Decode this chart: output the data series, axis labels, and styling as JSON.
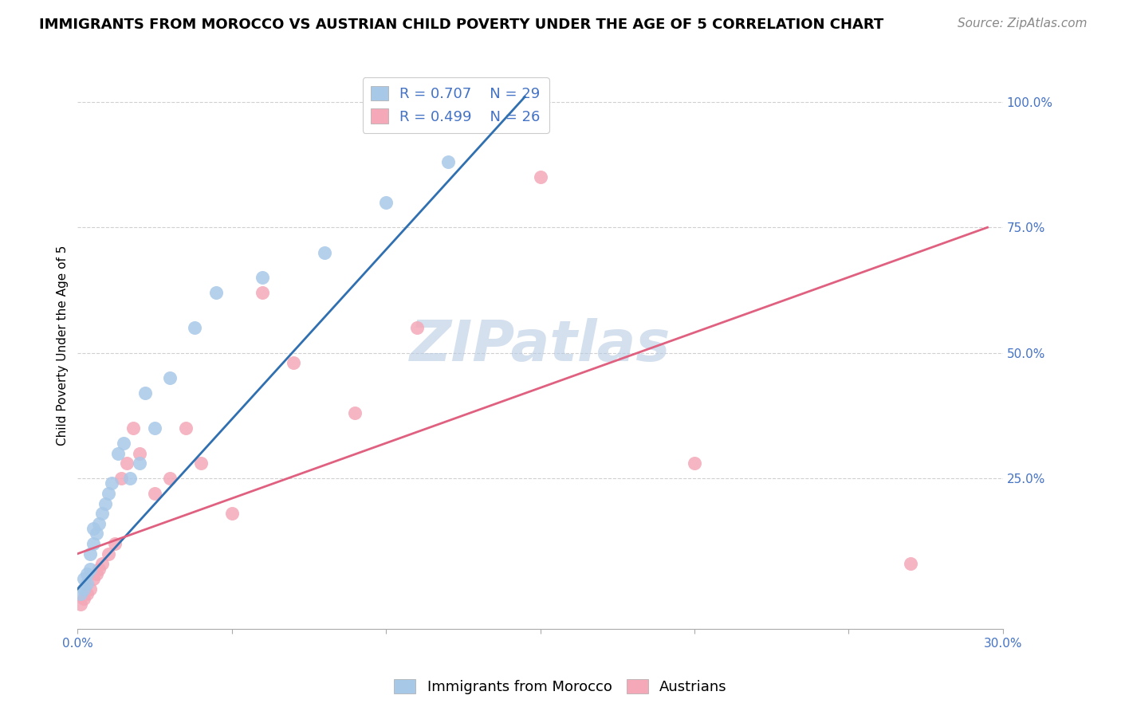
{
  "title": "IMMIGRANTS FROM MOROCCO VS AUSTRIAN CHILD POVERTY UNDER THE AGE OF 5 CORRELATION CHART",
  "source": "Source: ZipAtlas.com",
  "ylabel": "Child Poverty Under the Age of 5",
  "legend_series": [
    {
      "label": "Immigrants from Morocco",
      "R": "0.707",
      "N": "29",
      "color": "#a8c8e8"
    },
    {
      "label": "Austrians",
      "R": "0.499",
      "N": "26",
      "color": "#f4a8b8"
    }
  ],
  "xlim": [
    0.0,
    0.3
  ],
  "ylim": [
    -0.05,
    1.08
  ],
  "y_ticks_right": [
    0.25,
    0.5,
    0.75,
    1.0
  ],
  "y_tick_labels_right": [
    "25.0%",
    "50.0%",
    "75.0%",
    "100.0%"
  ],
  "watermark_text": "ZIPatlas",
  "blue_scatter_x": [
    0.001,
    0.002,
    0.002,
    0.003,
    0.003,
    0.004,
    0.004,
    0.005,
    0.005,
    0.006,
    0.007,
    0.008,
    0.009,
    0.01,
    0.011,
    0.013,
    0.015,
    0.017,
    0.02,
    0.022,
    0.025,
    0.03,
    0.038,
    0.045,
    0.06,
    0.08,
    0.1,
    0.12,
    0.14
  ],
  "blue_scatter_y": [
    0.02,
    0.03,
    0.05,
    0.04,
    0.06,
    0.07,
    0.1,
    0.12,
    0.15,
    0.14,
    0.16,
    0.18,
    0.2,
    0.22,
    0.24,
    0.3,
    0.32,
    0.25,
    0.28,
    0.42,
    0.35,
    0.45,
    0.55,
    0.62,
    0.65,
    0.7,
    0.8,
    0.88,
    1.0
  ],
  "pink_scatter_x": [
    0.001,
    0.002,
    0.003,
    0.004,
    0.005,
    0.006,
    0.007,
    0.008,
    0.01,
    0.012,
    0.014,
    0.016,
    0.018,
    0.02,
    0.025,
    0.03,
    0.035,
    0.04,
    0.05,
    0.06,
    0.07,
    0.09,
    0.11,
    0.15,
    0.2,
    0.27
  ],
  "pink_scatter_y": [
    0.0,
    0.01,
    0.02,
    0.03,
    0.05,
    0.06,
    0.07,
    0.08,
    0.1,
    0.12,
    0.25,
    0.28,
    0.35,
    0.3,
    0.22,
    0.25,
    0.35,
    0.28,
    0.18,
    0.62,
    0.48,
    0.38,
    0.55,
    0.85,
    0.28,
    0.08
  ],
  "blue_line_x": [
    0.0,
    0.145
  ],
  "blue_line_y": [
    0.03,
    1.01
  ],
  "pink_line_x": [
    0.0,
    0.295
  ],
  "pink_line_y": [
    0.1,
    0.75
  ],
  "title_fontsize": 13,
  "axis_label_fontsize": 11,
  "tick_fontsize": 11,
  "legend_fontsize": 13,
  "source_fontsize": 11,
  "watermark_fontsize": 52,
  "blue_scatter_color": "#a8c8e8",
  "pink_scatter_color": "#f4a8b8",
  "blue_line_color": "#3070b0",
  "pink_line_color": "#e06080",
  "grid_color": "#d0d0d0",
  "tick_color": "#4472c4",
  "background_color": "#ffffff",
  "legend_text_color": "#4472c4"
}
